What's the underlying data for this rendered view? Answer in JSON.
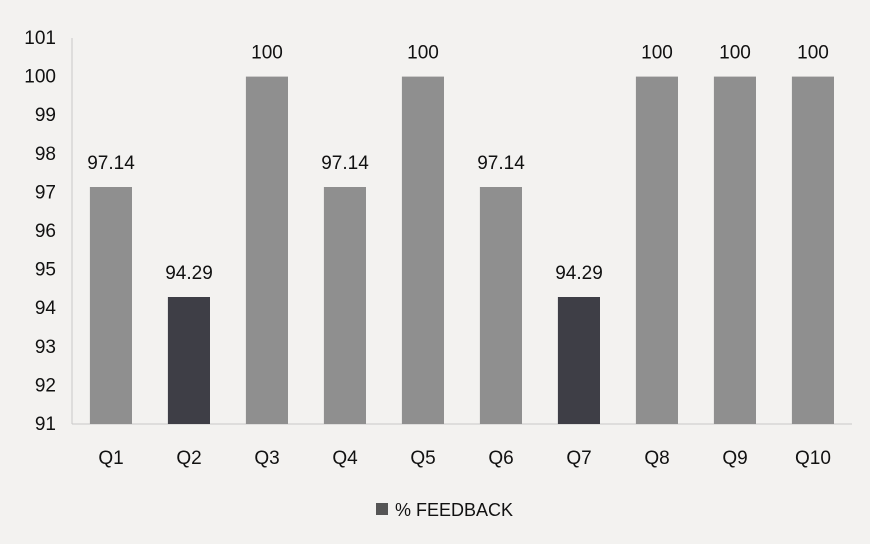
{
  "chart_data": {
    "type": "bar",
    "categories": [
      "Q1",
      "Q2",
      "Q3",
      "Q4",
      "Q5",
      "Q6",
      "Q7",
      "Q8",
      "Q9",
      "Q10"
    ],
    "series": [
      {
        "name": "% FEEDBACK",
        "values": [
          97.14,
          94.29,
          100,
          97.14,
          100,
          97.14,
          94.29,
          100,
          100,
          100
        ],
        "data_labels": [
          "97.14",
          "94.29",
          "100",
          "97.14",
          "100",
          "97.14",
          "94.29",
          "100",
          "100",
          "100"
        ]
      }
    ],
    "bar_colors": [
      "#8f8f8f",
      "#3e3e46",
      "#8f8f8f",
      "#8f8f8f",
      "#8f8f8f",
      "#8f8f8f",
      "#3e3e46",
      "#8f8f8f",
      "#8f8f8f",
      "#8f8f8f"
    ],
    "legend_color": "#555555",
    "ylim": [
      91,
      101
    ],
    "yticks": [
      "91",
      "92",
      "93",
      "94",
      "95",
      "96",
      "97",
      "98",
      "99",
      "100",
      "101"
    ],
    "grid": false,
    "legend_position": "bottom",
    "title": "",
    "xlabel": "",
    "ylabel": ""
  }
}
